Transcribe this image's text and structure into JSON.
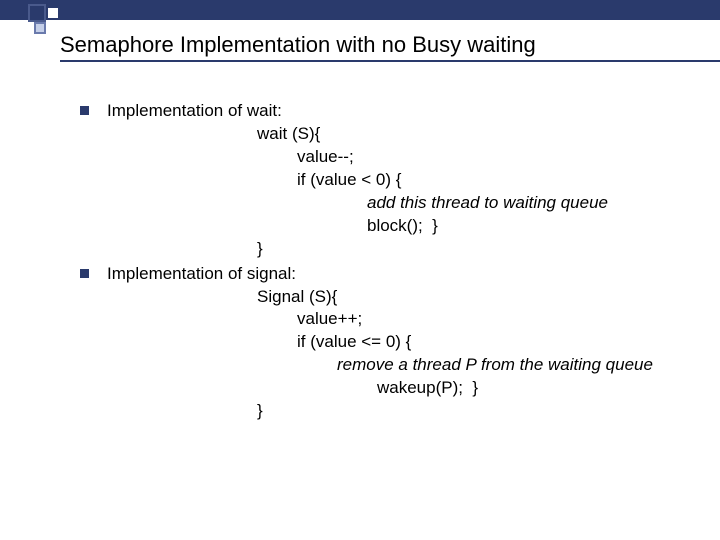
{
  "colors": {
    "accent": "#2a3a6c",
    "background": "#ffffff",
    "text": "#000000"
  },
  "slide": {
    "title": "Semaphore Implementation with no Busy waiting",
    "sections": [
      {
        "label": "Implementation of wait:",
        "lines": [
          {
            "indent": 150,
            "text": "wait (S){"
          },
          {
            "indent": 190,
            "text": "value--;"
          },
          {
            "indent": 190,
            "text": "if (value < 0) {"
          },
          {
            "indent": 260,
            "text": "add this thread to waiting queue",
            "italic": true
          },
          {
            "indent": 260,
            "text": "block();  }"
          },
          {
            "indent": 150,
            "text": "}"
          }
        ]
      },
      {
        "label": "Implementation of signal:",
        "lines": [
          {
            "indent": 150,
            "text": "Signal (S){"
          },
          {
            "indent": 190,
            "text": "value++;"
          },
          {
            "indent": 190,
            "text": "if (value <= 0) {"
          },
          {
            "indent": 230,
            "text": "remove a thread P from the waiting queue",
            "italic": true
          },
          {
            "indent": 270,
            "text": "wakeup(P);  }"
          },
          {
            "indent": 150,
            "text": "}"
          }
        ]
      }
    ]
  }
}
